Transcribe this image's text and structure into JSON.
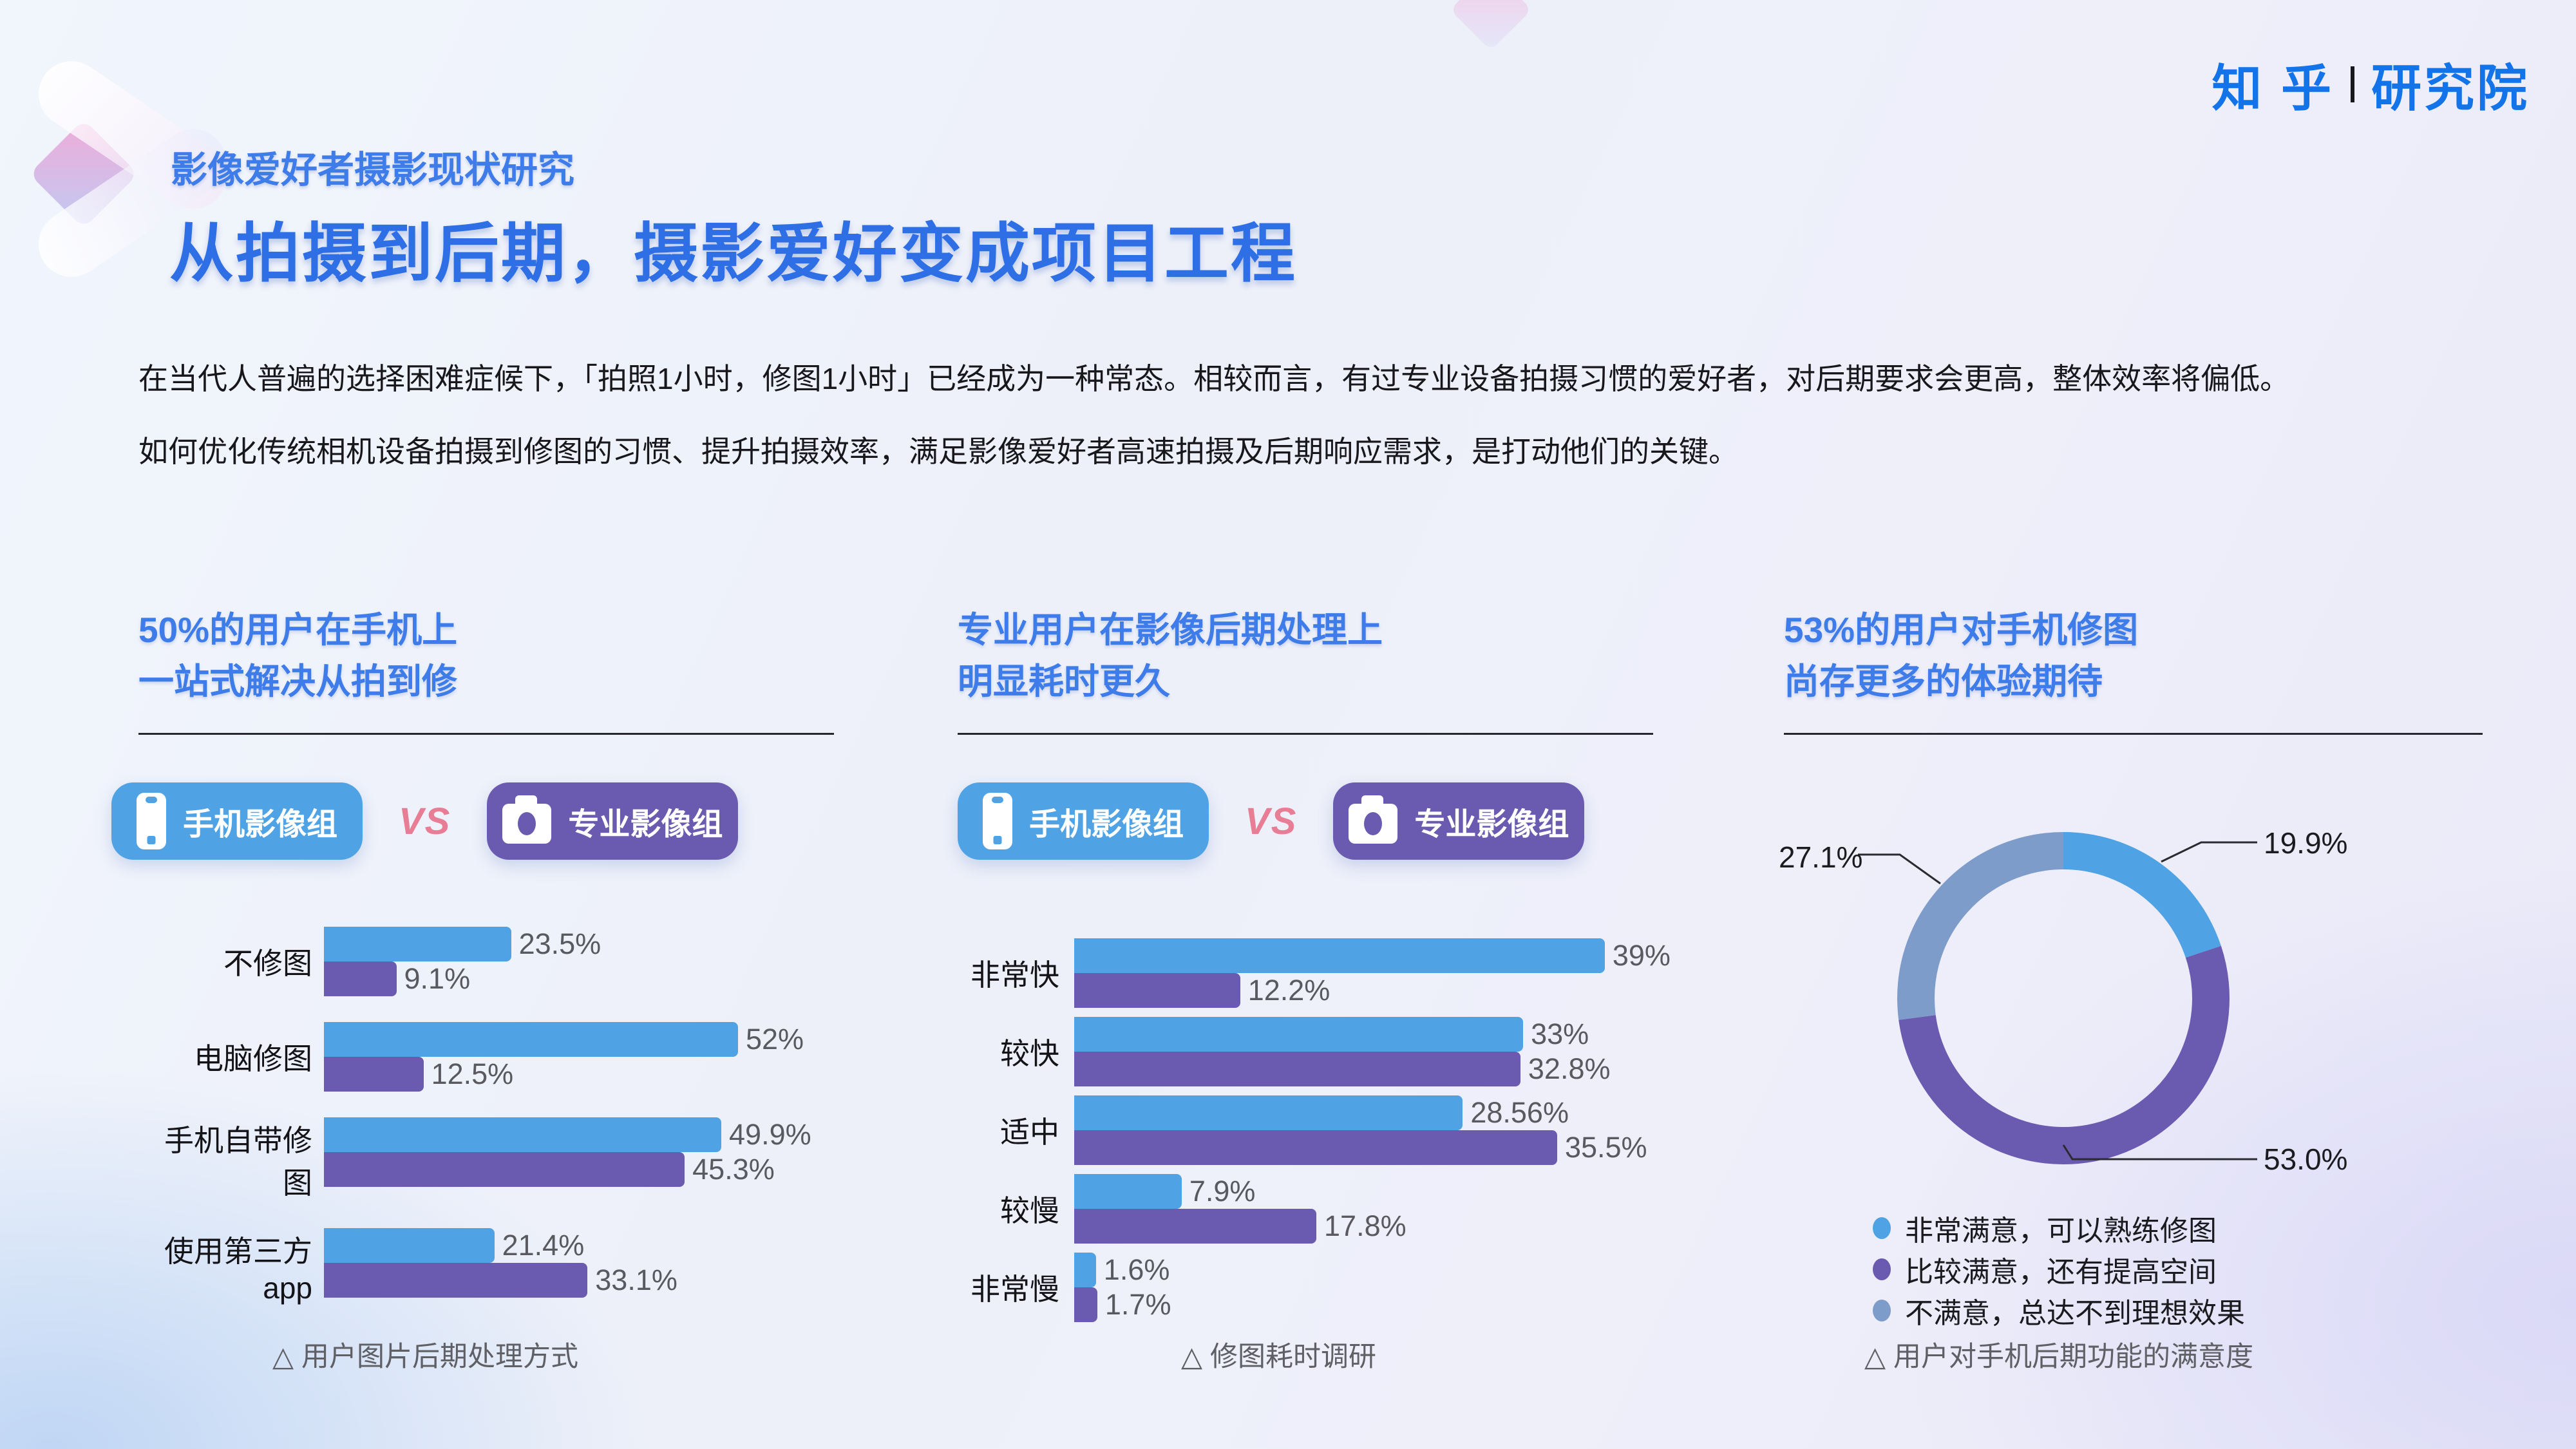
{
  "logo": {
    "brand": "知 乎",
    "suffix": "研究院"
  },
  "header": {
    "eyebrow": "影像爱好者摄影现状研究",
    "title": "从拍摄到后期，摄影爱好变成项目工程"
  },
  "intro": {
    "line1": "在当代人普遍的选择困难症候下，「拍照1小时，修图1小时」已经成为一种常态。相较而言，有过专业设备拍摄习惯的爱好者，对后期要求会更高，整体效率将偏低。",
    "line2": "如何优化传统相机设备拍摄到修图的习惯、提升拍摄效率，满足影像爱好者高速拍摄及后期响应需求，是打动他们的关键。"
  },
  "groups": {
    "phone_label": "手机影像组",
    "vs_label": "VS",
    "pro_label": "专业影像组"
  },
  "colors": {
    "accent_blue": "#2e6fe6",
    "section_title_blue": "#3e7ce9",
    "logo_blue": "#1374EA",
    "series_phone": "#4FA3E5",
    "series_pro": "#6B5BB0",
    "donut_neutral": "#7E9CC9",
    "vs_pink": "#E77E95"
  },
  "sections": [
    {
      "title_line1": "50%的用户在手机上",
      "title_line2": "一站式解决从拍到修",
      "caption": "△ 用户图片后期处理方式"
    },
    {
      "title_line1": "专业用户在影像后期处理上",
      "title_line2": "明显耗时更久",
      "caption": "△ 修图耗时调研"
    },
    {
      "title_line1": "53%的用户对手机修图",
      "title_line2": "尚存更多的体验期待",
      "caption": "△ 用户对手机后期功能的满意度"
    }
  ],
  "chart_data": [
    {
      "type": "bar",
      "orientation": "horizontal",
      "title": "用户图片后期处理方式",
      "categories": [
        "不修图",
        "电脑修图",
        "手机自带修图",
        "使用第三方app"
      ],
      "series": [
        {
          "name": "手机影像组",
          "color": "#4FA3E5",
          "values": [
            23.5,
            52,
            49.9,
            21.4
          ],
          "labels": [
            "23.5%",
            "52%",
            "49.9%",
            "21.4%"
          ]
        },
        {
          "name": "专业影像组",
          "color": "#6B5BB0",
          "values": [
            9.1,
            12.5,
            45.3,
            33.1
          ],
          "labels": [
            "9.1%",
            "12.5%",
            "45.3%",
            "33.1%"
          ]
        }
      ],
      "xlim": [
        0,
        52
      ],
      "grid": false,
      "value_labels": true
    },
    {
      "type": "bar",
      "orientation": "horizontal",
      "title": "修图耗时调研",
      "categories": [
        "非常快",
        "较快",
        "适中",
        "较慢",
        "非常慢"
      ],
      "series": [
        {
          "name": "手机影像组",
          "color": "#4FA3E5",
          "values": [
            39,
            33,
            28.56,
            7.9,
            1.6
          ],
          "labels": [
            "39%",
            "33%",
            "28.56%",
            "7.9%",
            "1.6%"
          ]
        },
        {
          "name": "专业影像组",
          "color": "#6B5BB0",
          "values": [
            12.2,
            32.8,
            35.5,
            17.8,
            1.7
          ],
          "labels": [
            "12.2%",
            "32.8%",
            "35.5%",
            "17.8%",
            "1.7%"
          ]
        }
      ],
      "xlim": [
        0,
        40
      ],
      "grid": false,
      "value_labels": true
    },
    {
      "type": "pie",
      "donut": true,
      "title": "用户对手机后期功能的满意度",
      "start_angle_deg": 0,
      "clockwise": true,
      "legend_position": "bottom",
      "slices": [
        {
          "label": "非常满意，可以熟练修图",
          "value": 19.9,
          "display": "19.9%",
          "color": "#4FA3E5"
        },
        {
          "label": "比较满意，还有提高空间",
          "value": 53.0,
          "display": "53.0%",
          "color": "#6B5BB0"
        },
        {
          "label": "不满意，总达不到理想效果",
          "value": 27.1,
          "display": "27.1%",
          "color": "#7E9CC9"
        }
      ]
    }
  ]
}
